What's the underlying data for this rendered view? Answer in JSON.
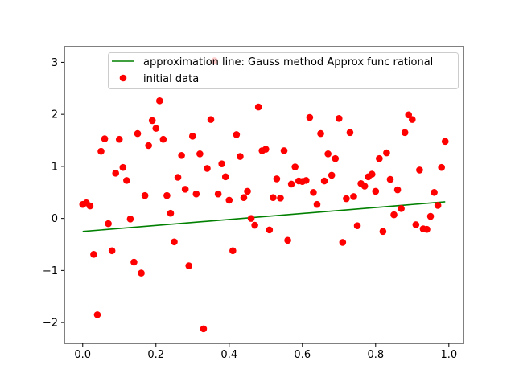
{
  "chart_data": {
    "type": "scatter",
    "title": "",
    "xlabel": "",
    "ylabel": "",
    "xlim": [
      -0.05,
      1.04
    ],
    "ylim": [
      -2.4,
      3.3
    ],
    "xticks": [
      0.0,
      0.2,
      0.4,
      0.6,
      0.8,
      1.0
    ],
    "xtick_labels": [
      "0.0",
      "0.2",
      "0.4",
      "0.6",
      "0.8",
      "1.0"
    ],
    "yticks": [
      -2,
      -1,
      0,
      1,
      2,
      3
    ],
    "ytick_labels": [
      "−2",
      "−1",
      "0",
      "1",
      "2",
      "3"
    ],
    "grid": false,
    "legend_position": "top-right",
    "series": [
      {
        "name": "approximation line: Gauss method Approx func rational",
        "kind": "line",
        "color": "#008000",
        "x": [
          0.0,
          0.99
        ],
        "y": [
          -0.25,
          0.32
        ]
      },
      {
        "name": "initial data",
        "kind": "scatter",
        "color": "#ff0000",
        "points": [
          [
            0.0,
            0.27
          ],
          [
            0.01,
            0.3
          ],
          [
            0.02,
            0.24
          ],
          [
            0.03,
            -0.69
          ],
          [
            0.04,
            -1.85
          ],
          [
            0.05,
            1.29
          ],
          [
            0.06,
            1.53
          ],
          [
            0.07,
            -0.1
          ],
          [
            0.08,
            -0.62
          ],
          [
            0.09,
            0.87
          ],
          [
            0.1,
            1.52
          ],
          [
            0.11,
            0.98
          ],
          [
            0.12,
            0.73
          ],
          [
            0.13,
            -0.01
          ],
          [
            0.14,
            -0.84
          ],
          [
            0.15,
            1.63
          ],
          [
            0.16,
            -1.05
          ],
          [
            0.17,
            0.44
          ],
          [
            0.18,
            1.4
          ],
          [
            0.19,
            1.88
          ],
          [
            0.2,
            1.73
          ],
          [
            0.21,
            2.26
          ],
          [
            0.22,
            1.52
          ],
          [
            0.23,
            0.44
          ],
          [
            0.24,
            0.1
          ],
          [
            0.25,
            -0.45
          ],
          [
            0.26,
            0.79
          ],
          [
            0.27,
            1.21
          ],
          [
            0.28,
            0.56
          ],
          [
            0.29,
            -0.91
          ],
          [
            0.3,
            1.58
          ],
          [
            0.31,
            0.47
          ],
          [
            0.32,
            1.24
          ],
          [
            0.33,
            -2.12
          ],
          [
            0.34,
            0.96
          ],
          [
            0.35,
            1.9
          ],
          [
            0.36,
            3.03
          ],
          [
            0.37,
            0.47
          ],
          [
            0.38,
            1.05
          ],
          [
            0.39,
            0.8
          ],
          [
            0.4,
            0.35
          ],
          [
            0.41,
            -0.62
          ],
          [
            0.42,
            1.61
          ],
          [
            0.43,
            1.19
          ],
          [
            0.44,
            0.4
          ],
          [
            0.45,
            0.52
          ],
          [
            0.46,
            0.0
          ],
          [
            0.47,
            -0.13
          ],
          [
            0.48,
            2.14
          ],
          [
            0.49,
            1.3
          ],
          [
            0.5,
            1.33
          ],
          [
            0.51,
            -0.22
          ],
          [
            0.52,
            0.4
          ],
          [
            0.53,
            0.76
          ],
          [
            0.54,
            0.39
          ],
          [
            0.55,
            1.3
          ],
          [
            0.56,
            -0.42
          ],
          [
            0.57,
            0.66
          ],
          [
            0.58,
            0.99
          ],
          [
            0.59,
            0.72
          ],
          [
            0.6,
            0.71
          ],
          [
            0.61,
            0.73
          ],
          [
            0.62,
            1.94
          ],
          [
            0.63,
            0.5
          ],
          [
            0.64,
            0.27
          ],
          [
            0.65,
            1.63
          ],
          [
            0.66,
            0.72
          ],
          [
            0.67,
            1.24
          ],
          [
            0.68,
            0.83
          ],
          [
            0.69,
            1.15
          ],
          [
            0.7,
            1.92
          ],
          [
            0.71,
            -0.46
          ],
          [
            0.72,
            0.38
          ],
          [
            0.73,
            1.65
          ],
          [
            0.74,
            0.42
          ],
          [
            0.75,
            -0.14
          ],
          [
            0.76,
            0.67
          ],
          [
            0.77,
            0.62
          ],
          [
            0.78,
            0.8
          ],
          [
            0.79,
            0.85
          ],
          [
            0.8,
            0.52
          ],
          [
            0.81,
            1.15
          ],
          [
            0.82,
            -0.25
          ],
          [
            0.83,
            1.26
          ],
          [
            0.84,
            0.75
          ],
          [
            0.85,
            0.07
          ],
          [
            0.86,
            0.55
          ],
          [
            0.87,
            0.19
          ],
          [
            0.88,
            1.65
          ],
          [
            0.89,
            1.99
          ],
          [
            0.9,
            1.9
          ],
          [
            0.91,
            -0.12
          ],
          [
            0.92,
            0.93
          ],
          [
            0.93,
            -0.2
          ],
          [
            0.94,
            -0.21
          ],
          [
            0.95,
            0.04
          ],
          [
            0.96,
            0.5
          ],
          [
            0.97,
            0.25
          ],
          [
            0.98,
            0.98
          ],
          [
            0.99,
            1.48
          ]
        ]
      }
    ]
  }
}
